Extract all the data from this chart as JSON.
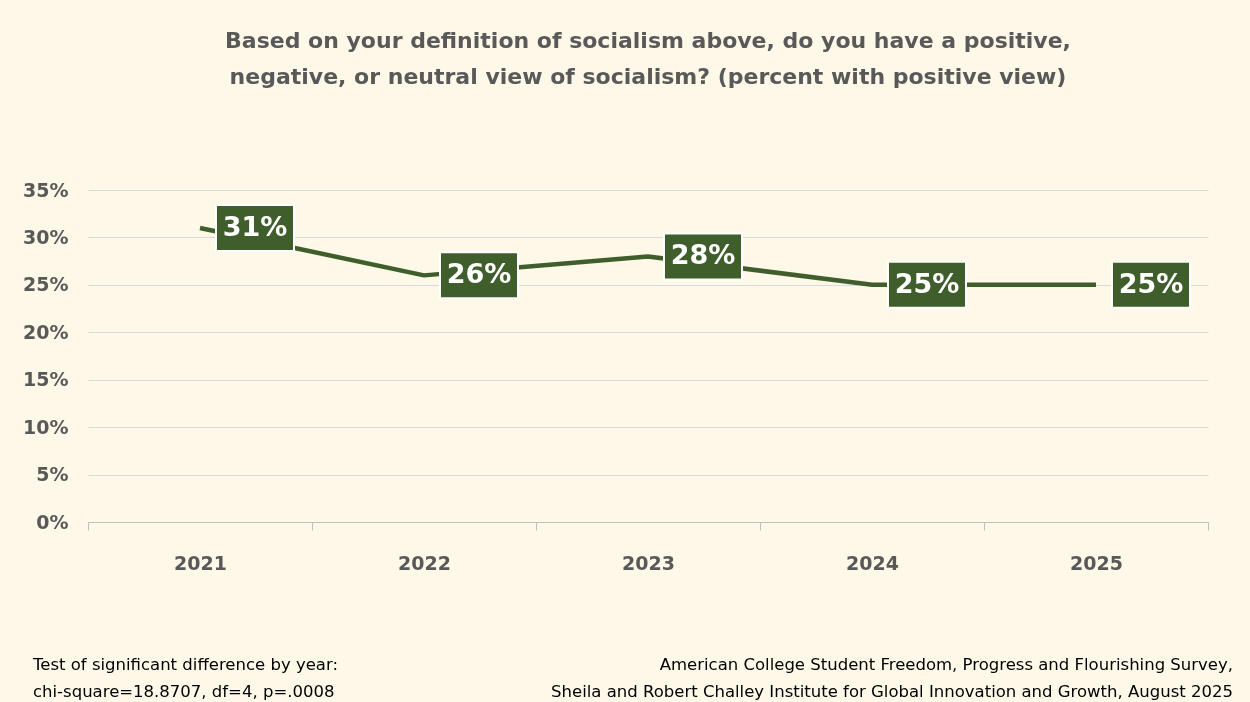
{
  "chart_data": {
    "type": "line",
    "title": "Based on your definition of socialism above, do you have a positive,\nnegative, or neutral view of socialism? (percent with positive view)",
    "categories": [
      "2021",
      "2022",
      "2023",
      "2024",
      "2025"
    ],
    "values": [
      31,
      26,
      28,
      25,
      25
    ],
    "value_labels": [
      "31%",
      "26%",
      "28%",
      "25%",
      "25%"
    ],
    "color": "#3f5e2b",
    "ylim": [
      0,
      35
    ],
    "yticks": [
      {
        "value": 0,
        "label": "0%"
      },
      {
        "value": 5,
        "label": "5%"
      },
      {
        "value": 10,
        "label": "10%"
      },
      {
        "value": 15,
        "label": "15%"
      },
      {
        "value": 20,
        "label": "20%"
      },
      {
        "value": 25,
        "label": "25%"
      },
      {
        "value": 30,
        "label": "30%"
      },
      {
        "value": 35,
        "label": "35%"
      }
    ],
    "grid": "y",
    "marker": "none",
    "line_style": "solid",
    "annotations": [
      "Test of significant difference by year:\nchi-square=18.8707, df=4, p=.0008",
      "American College Student Freedom, Progress and Flourishing Survey,\nSheila and Robert Challey Institute for Global Innovation and Growth, August 2025"
    ]
  }
}
